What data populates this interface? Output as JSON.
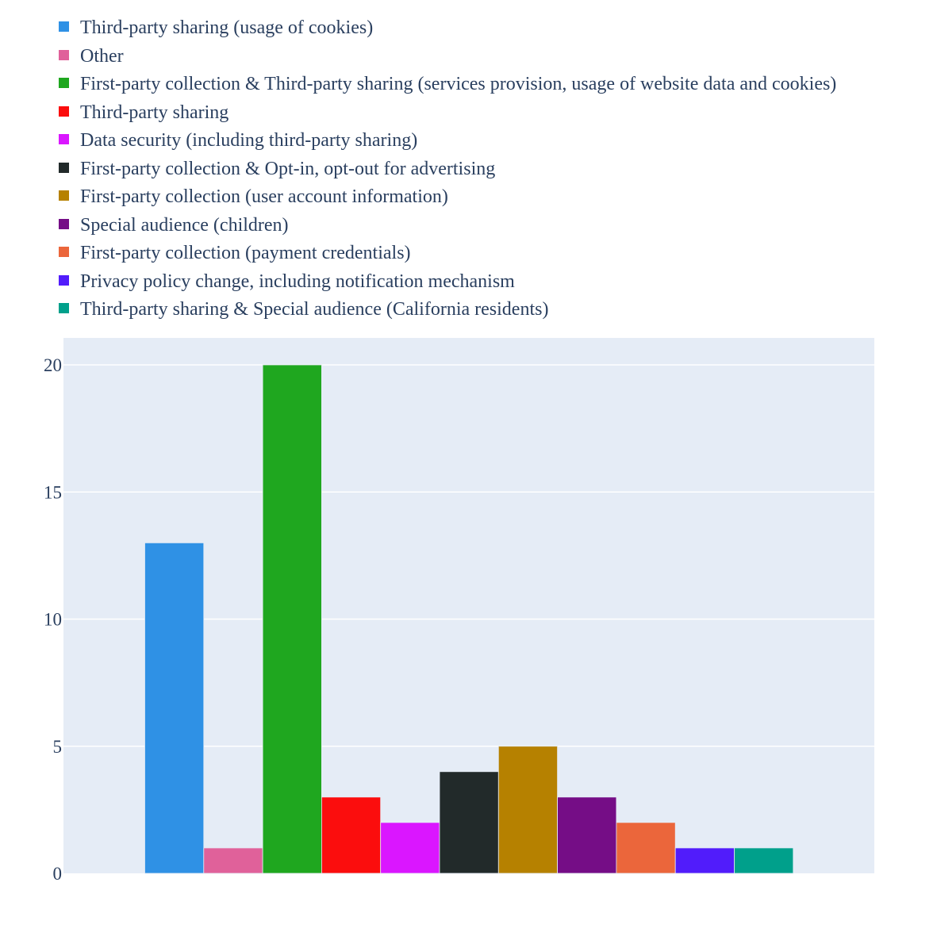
{
  "chart_data": {
    "type": "bar",
    "title": "",
    "xlabel": "",
    "ylabel": "",
    "ylim": [
      0,
      21
    ],
    "yticks": [
      0,
      5,
      10,
      15,
      20
    ],
    "grid": true,
    "legend_position": "top-left",
    "series": [
      {
        "name": "Third-party sharing (usage of cookies)",
        "value": 13,
        "color": "#2f91e5"
      },
      {
        "name": "Other",
        "value": 1,
        "color": "#e0619a"
      },
      {
        "name": "First-party collection & Third-party sharing (services provision, usage of website data and cookies)",
        "value": 20,
        "color": "#1fa71f"
      },
      {
        "name": "Third-party sharing",
        "value": 3,
        "color": "#fb0d0d"
      },
      {
        "name": "Data security (including third-party sharing)",
        "value": 2,
        "color": "#da16ff"
      },
      {
        "name": "First-party collection & Opt-in, opt-out for advertising",
        "value": 4,
        "color": "#222a2a"
      },
      {
        "name": "First-party collection (user account information)",
        "value": 5,
        "color": "#b68100"
      },
      {
        "name": "Special audience (children)",
        "value": 3,
        "color": "#750d86"
      },
      {
        "name": "First-party collection (payment credentials)",
        "value": 2,
        "color": "#eb663b"
      },
      {
        "name": "Privacy policy change, including notification mechanism",
        "value": 1,
        "color": "#511cfb"
      },
      {
        "name": "Third-party sharing & Special audience (California residents)",
        "value": 1,
        "color": "#00a08b"
      }
    ]
  },
  "colors": {
    "plot_background": "#e5ecf6",
    "gridline": "#ffffff",
    "text": "#2a3f5f"
  }
}
